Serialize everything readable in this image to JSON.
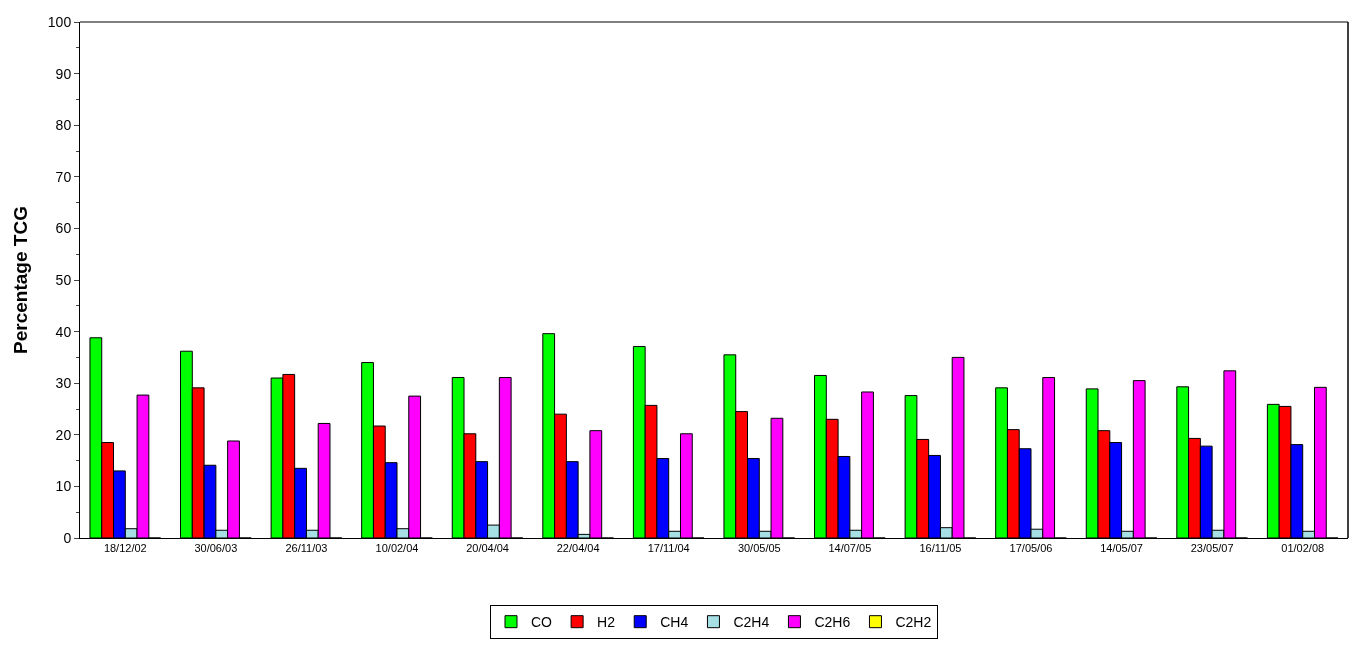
{
  "chart_data": {
    "type": "bar",
    "ylabel": "Percentage TCG",
    "categories": [
      "18/12/02",
      "30/06/03",
      "26/11/03",
      "10/02/04",
      "20/04/04",
      "22/04/04",
      "17/11/04",
      "30/05/05",
      "14/07/05",
      "16/11/05",
      "17/05/06",
      "14/05/07",
      "23/05/07",
      "01/02/08"
    ],
    "series": [
      {
        "name": "CO",
        "color": "#00ff00",
        "values": [
          38.8,
          36.2,
          31,
          34,
          31.1,
          39.6,
          37.1,
          35.5,
          31.5,
          27.6,
          29.1,
          28.9,
          29.3,
          25.9
        ]
      },
      {
        "name": "H2",
        "color": "#ff0000",
        "values": [
          18.5,
          29.1,
          31.7,
          21.7,
          20.2,
          24,
          25.7,
          24.5,
          23,
          19.1,
          21,
          20.8,
          19.3,
          25.5
        ]
      },
      {
        "name": "CH4",
        "color": "#0000ff",
        "values": [
          13,
          14.1,
          13.5,
          14.6,
          14.8,
          14.8,
          15.4,
          15.4,
          15.8,
          16,
          17.3,
          18.5,
          17.8,
          18.1
        ]
      },
      {
        "name": "C2H4",
        "color": "#a6e0e4",
        "values": [
          1.8,
          1.5,
          1.5,
          1.8,
          2.5,
          0.7,
          1.3,
          1.3,
          1.5,
          2,
          1.7,
          1.3,
          1.5,
          1.3
        ]
      },
      {
        "name": "C2H6",
        "color": "#ff00ff",
        "values": [
          27.7,
          18.8,
          22.2,
          27.5,
          31.1,
          20.8,
          20.2,
          23.2,
          28.3,
          35,
          31.1,
          30.5,
          32.4,
          29.2
        ]
      },
      {
        "name": "C2H2",
        "color": "#ffff00",
        "values": [
          0,
          0,
          0,
          0,
          0,
          0,
          0,
          0,
          0,
          0,
          0,
          0,
          0,
          0
        ]
      }
    ],
    "ylim": [
      0,
      100
    ],
    "yticks": [
      0,
      10,
      20,
      30,
      40,
      50,
      60,
      70,
      80,
      90,
      100
    ],
    "legend": "bottom"
  }
}
